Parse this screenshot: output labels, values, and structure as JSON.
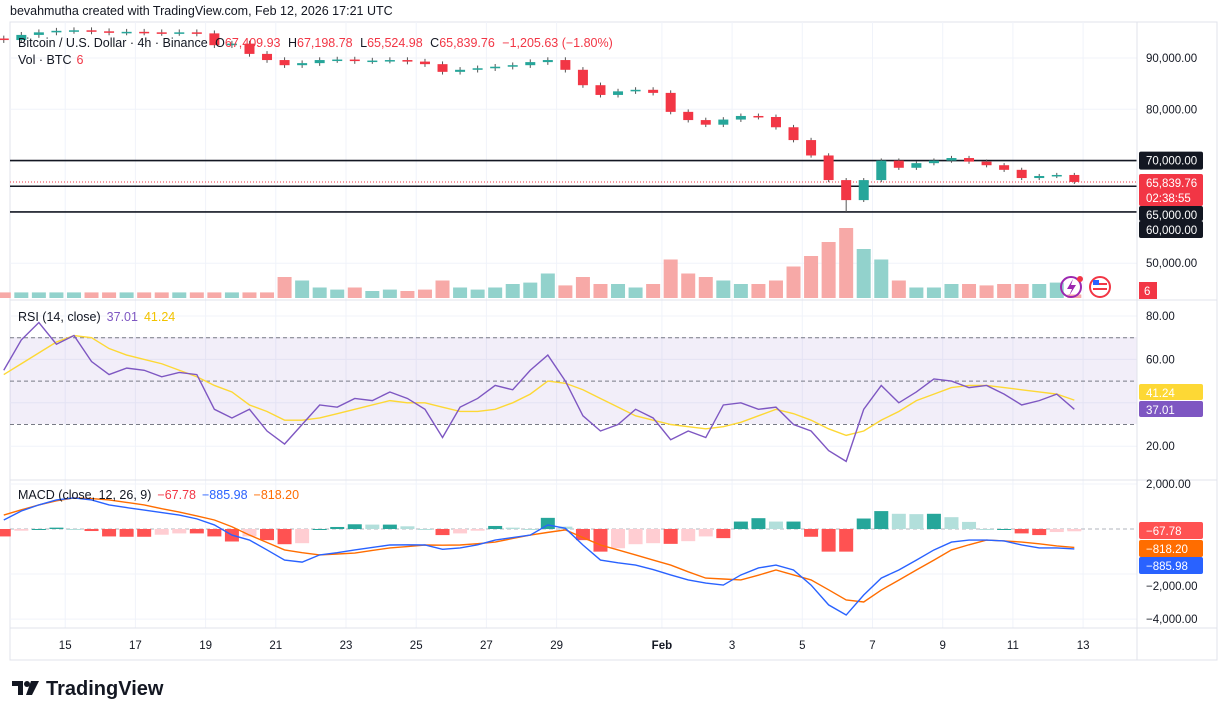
{
  "credit": "bevahmutha created with TradingView.com, Feb 12, 2026 17:21 UTC",
  "legend": {
    "symbol": "Bitcoin / U.S. Dollar · 4h · Binance",
    "open_label": "O",
    "open": "67,409.93",
    "high_label": "H",
    "high": "67,198.78",
    "low_label": "L",
    "low": "65,524.98",
    "close_label": "C",
    "close": "65,839.76",
    "change": "−1,205.63 (−1.80%)",
    "vol_label": "Vol · BTC",
    "vol_value": "6"
  },
  "rsi_legend": {
    "label": "RSI (14, close)",
    "rsi": "37.01",
    "ma": "41.24"
  },
  "macd_legend": {
    "label": "MACD (close, 12, 26, 9)",
    "hist": "−67.78",
    "macd": "−885.98",
    "signal": "−818.20"
  },
  "price_axis": {
    "ticks": [
      {
        "value": 90000,
        "label": "90,000.00"
      },
      {
        "value": 80000,
        "label": "80,000.00"
      },
      {
        "value": 50000,
        "label": "50,000.00"
      }
    ],
    "level_badges": [
      {
        "value": 70000,
        "label": "70,000.00"
      },
      {
        "value": 65000,
        "label": "65,000.00"
      },
      {
        "value": 60000,
        "label": "60,000.00"
      }
    ],
    "last_price": "65,839.76",
    "countdown": "02:38:55",
    "volume_badge": "6"
  },
  "rsi_axis": {
    "ticks": [
      {
        "value": 80,
        "label": "80.00"
      },
      {
        "value": 60,
        "label": "60.00"
      },
      {
        "value": 20,
        "label": "20.00"
      }
    ],
    "ma_badge": "41.24",
    "rsi_badge": "37.01"
  },
  "macd_axis": {
    "ticks": [
      {
        "value": 2000,
        "label": "2,000.00"
      },
      {
        "value": -2000,
        "label": "−2,000.00"
      },
      {
        "value": -4000,
        "label": "−4,000.00"
      }
    ],
    "hist_badge": "−67.78",
    "signal_badge": "−818.20",
    "macd_badge": "−885.98"
  },
  "x_ticks": [
    {
      "date": "2026-01-15",
      "label": "15"
    },
    {
      "date": "2026-01-17",
      "label": "17"
    },
    {
      "date": "2026-01-19",
      "label": "19"
    },
    {
      "date": "2026-01-21",
      "label": "21"
    },
    {
      "date": "2026-01-23",
      "label": "23"
    },
    {
      "date": "2026-01-25",
      "label": "25"
    },
    {
      "date": "2026-01-27",
      "label": "27"
    },
    {
      "date": "2026-01-29",
      "label": "29"
    },
    {
      "date": "2026-02-01",
      "label": "Feb"
    },
    {
      "date": "2026-02-03",
      "label": "3"
    },
    {
      "date": "2026-02-05",
      "label": "5"
    },
    {
      "date": "2026-02-07",
      "label": "7"
    },
    {
      "date": "2026-02-09",
      "label": "9"
    },
    {
      "date": "2026-02-11",
      "label": "11"
    },
    {
      "date": "2026-02-13",
      "label": "13"
    }
  ],
  "logo": "TradingView",
  "colors": {
    "up": "#26a69a",
    "down": "#f23645",
    "vol_up": "#92d2cc",
    "vol_down": "#f7a9a7",
    "rsi": "#7e57c2",
    "rsi_ma": "#fdd835",
    "macd": "#2962ff",
    "signal": "#ff6d00",
    "rsi_band": "#7e57c2",
    "level_line": "#131722",
    "badge_dark": "#131722"
  },
  "chart_data": {
    "type": "candlestick",
    "symbol": "BTCUSD",
    "start": "2026-01-13 00:00",
    "sample_interval": "12h",
    "horizontal_levels": [
      70000,
      65000,
      60000
    ],
    "last_price": 65839.76,
    "ylim": [
      45000,
      97000
    ],
    "close": [
      93500,
      94500,
      95000,
      95300,
      95400,
      95200,
      95000,
      95100,
      95000,
      94900,
      95000,
      94800,
      92500,
      92800,
      90800,
      89600,
      88600,
      89000,
      89600,
      89700,
      89400,
      89500,
      89600,
      89300,
      88800,
      87300,
      87700,
      88000,
      88300,
      88600,
      89200,
      89600,
      87700,
      84700,
      82800,
      83500,
      83800,
      83200,
      79500,
      77900,
      77000,
      78000,
      78700,
      78500,
      76500,
      74000,
      71000,
      66200,
      62300,
      66200,
      70000,
      68600,
      69500,
      70000,
      70500,
      69800,
      69100,
      68200,
      66600,
      67000,
      67200,
      65839.76
    ],
    "volume_relative": [
      0.08,
      0.08,
      0.08,
      0.08,
      0.08,
      0.08,
      0.08,
      0.08,
      0.08,
      0.08,
      0.08,
      0.08,
      0.08,
      0.08,
      0.08,
      0.08,
      0.3,
      0.25,
      0.15,
      0.12,
      0.15,
      0.1,
      0.12,
      0.1,
      0.12,
      0.25,
      0.15,
      0.12,
      0.15,
      0.2,
      0.22,
      0.35,
      0.18,
      0.3,
      0.2,
      0.2,
      0.15,
      0.2,
      0.55,
      0.35,
      0.3,
      0.25,
      0.2,
      0.2,
      0.25,
      0.45,
      0.6,
      0.8,
      1.0,
      0.7,
      0.55,
      0.25,
      0.15,
      0.15,
      0.2,
      0.2,
      0.18,
      0.2,
      0.2,
      0.2,
      0.22,
      0.05
    ],
    "rsi": {
      "ylim": [
        10,
        85
      ],
      "bands": [
        70,
        50,
        30
      ],
      "values": [
        55,
        69,
        77,
        67,
        71,
        59,
        53,
        56,
        55,
        52,
        54,
        53,
        37,
        33,
        37,
        27,
        21,
        30,
        39,
        38,
        42,
        41,
        45,
        42,
        37,
        24,
        38,
        42,
        48,
        46,
        55,
        62,
        50,
        34,
        27,
        30,
        37,
        33,
        23,
        27,
        24,
        39,
        40,
        37,
        38,
        30,
        27,
        18,
        13,
        37,
        48,
        40,
        45,
        51,
        50,
        47,
        48,
        44,
        39,
        41,
        44,
        37.01
      ],
      "ma": [
        53,
        58,
        63,
        68,
        71,
        70,
        65,
        62,
        60,
        58,
        55,
        52,
        48,
        45,
        39,
        36,
        32,
        32,
        33,
        35,
        37,
        39,
        41,
        40,
        40,
        38,
        36,
        36,
        37,
        40,
        44,
        50,
        49,
        46,
        42,
        38,
        34,
        32,
        30,
        29,
        28,
        29,
        31,
        34,
        37,
        35,
        32,
        28,
        25,
        27,
        32,
        36,
        41,
        44,
        47,
        48,
        48,
        47,
        46,
        45,
        44,
        41.24
      ]
    },
    "macd": {
      "ylim": [
        -4500,
        2200
      ],
      "macd": [
        400,
        800,
        1070,
        1290,
        1380,
        1290,
        1070,
        950,
        840,
        730,
        620,
        450,
        180,
        -270,
        -490,
        -930,
        -1380,
        -1470,
        -1150,
        -1050,
        -930,
        -820,
        -710,
        -700,
        -710,
        -900,
        -840,
        -700,
        -490,
        -380,
        -270,
        180,
        30,
        -710,
        -1380,
        -1500,
        -1600,
        -1800,
        -2040,
        -2260,
        -2400,
        -2490,
        -2040,
        -1730,
        -1600,
        -1820,
        -2490,
        -3370,
        -3820,
        -2930,
        -2180,
        -1820,
        -1380,
        -930,
        -580,
        -490,
        -490,
        -530,
        -710,
        -840,
        -840,
        -885.98
      ],
      "signal": [
        620,
        850,
        1070,
        1250,
        1380,
        1350,
        1290,
        1180,
        1070,
        900,
        750,
        580,
        400,
        100,
        -270,
        -600,
        -930,
        -1050,
        -1150,
        -1110,
        -1070,
        -950,
        -840,
        -780,
        -710,
        -720,
        -710,
        -650,
        -580,
        -420,
        -270,
        -150,
        -40,
        -380,
        -710,
        -930,
        -1150,
        -1380,
        -1600,
        -1900,
        -2180,
        -2220,
        -2260,
        -2050,
        -1820,
        -2040,
        -2260,
        -2700,
        -3150,
        -3240,
        -2710,
        -2270,
        -1820,
        -1380,
        -930,
        -700,
        -490,
        -530,
        -580,
        -660,
        -750,
        -818.2
      ]
    }
  }
}
